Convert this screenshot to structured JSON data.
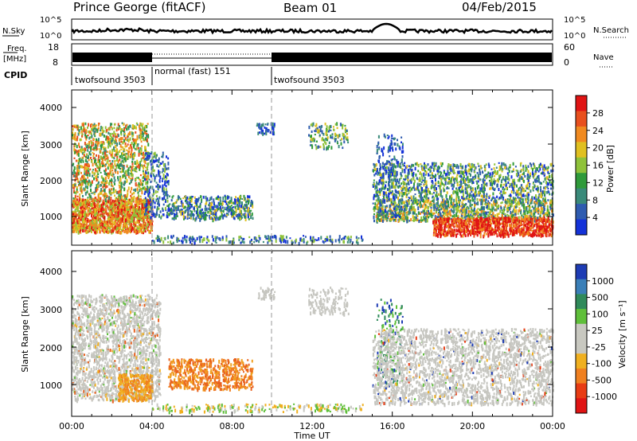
{
  "header": {
    "station": "Prince George (fitACF)",
    "beam": "Beam 01",
    "date": "04/Feb/2015"
  },
  "panel_labels": {
    "nsky": "N.Sky",
    "freq_line1": "Freq.",
    "freq_line2": "[MHz]",
    "cpid": "CPID",
    "nsearch": "N.Search",
    "nave": "Nave"
  },
  "chart_data": [
    {
      "type": "line",
      "name": "noise-panel",
      "ylabel": "N.Sky",
      "ylabel_right": "N.Search",
      "yticks": [
        "10^5",
        "10^0"
      ],
      "yticks_right": [
        "10^5",
        "10^0"
      ]
    },
    {
      "type": "line",
      "name": "frequency-panel",
      "ylabel": "Freq. [MHz]",
      "ylabel_right": "Nave",
      "yticks": [
        "18",
        "8"
      ],
      "yticks_right": [
        "60",
        "0"
      ]
    },
    {
      "type": "table",
      "name": "cpid-panel",
      "segments": [
        {
          "label": "twofsound 3503",
          "start_hour": 0,
          "end_hour": 4.0
        },
        {
          "label": "normal (fast) 151",
          "start_hour": 4.0,
          "end_hour": 9.95
        },
        {
          "label": "twofsound 3503",
          "start_hour": 9.95,
          "end_hour": 24
        }
      ]
    },
    {
      "type": "heatmap",
      "name": "power-panel",
      "ylabel": "Slant Range [km]",
      "yticks": [
        "1000",
        "2000",
        "3000",
        "4000"
      ],
      "colorbar": {
        "label": "Power [dB]",
        "ticks": [
          "4",
          "8",
          "12",
          "16",
          "20",
          "24",
          "28"
        ],
        "colors": [
          "#1432d8",
          "#2f5cb0",
          "#3a8a7a",
          "#2f9a3a",
          "#8fc23a",
          "#e0c020",
          "#f08a20",
          "#e8501e",
          "#e01414"
        ]
      }
    },
    {
      "type": "heatmap",
      "name": "velocity-panel",
      "ylabel": "Slant Range [km]",
      "yticks": [
        "1000",
        "2000",
        "3000",
        "4000"
      ],
      "colorbar": {
        "label": "Velocity [m s⁻¹]",
        "ticks": [
          "1000",
          "500",
          "100",
          "25",
          "-25",
          "-100",
          "-500",
          "-1000"
        ],
        "colors": [
          "#1e3cb4",
          "#3a7fb8",
          "#2f8a5a",
          "#5fbf3a",
          "#c8c8c0",
          "#c8c8c0",
          "#f0b020",
          "#f08020",
          "#e83c14",
          "#e01414"
        ]
      }
    }
  ],
  "xaxis": {
    "label": "Time UT",
    "ticks": [
      "00:00",
      "04:00",
      "08:00",
      "12:00",
      "16:00",
      "20:00",
      "00:00"
    ]
  }
}
